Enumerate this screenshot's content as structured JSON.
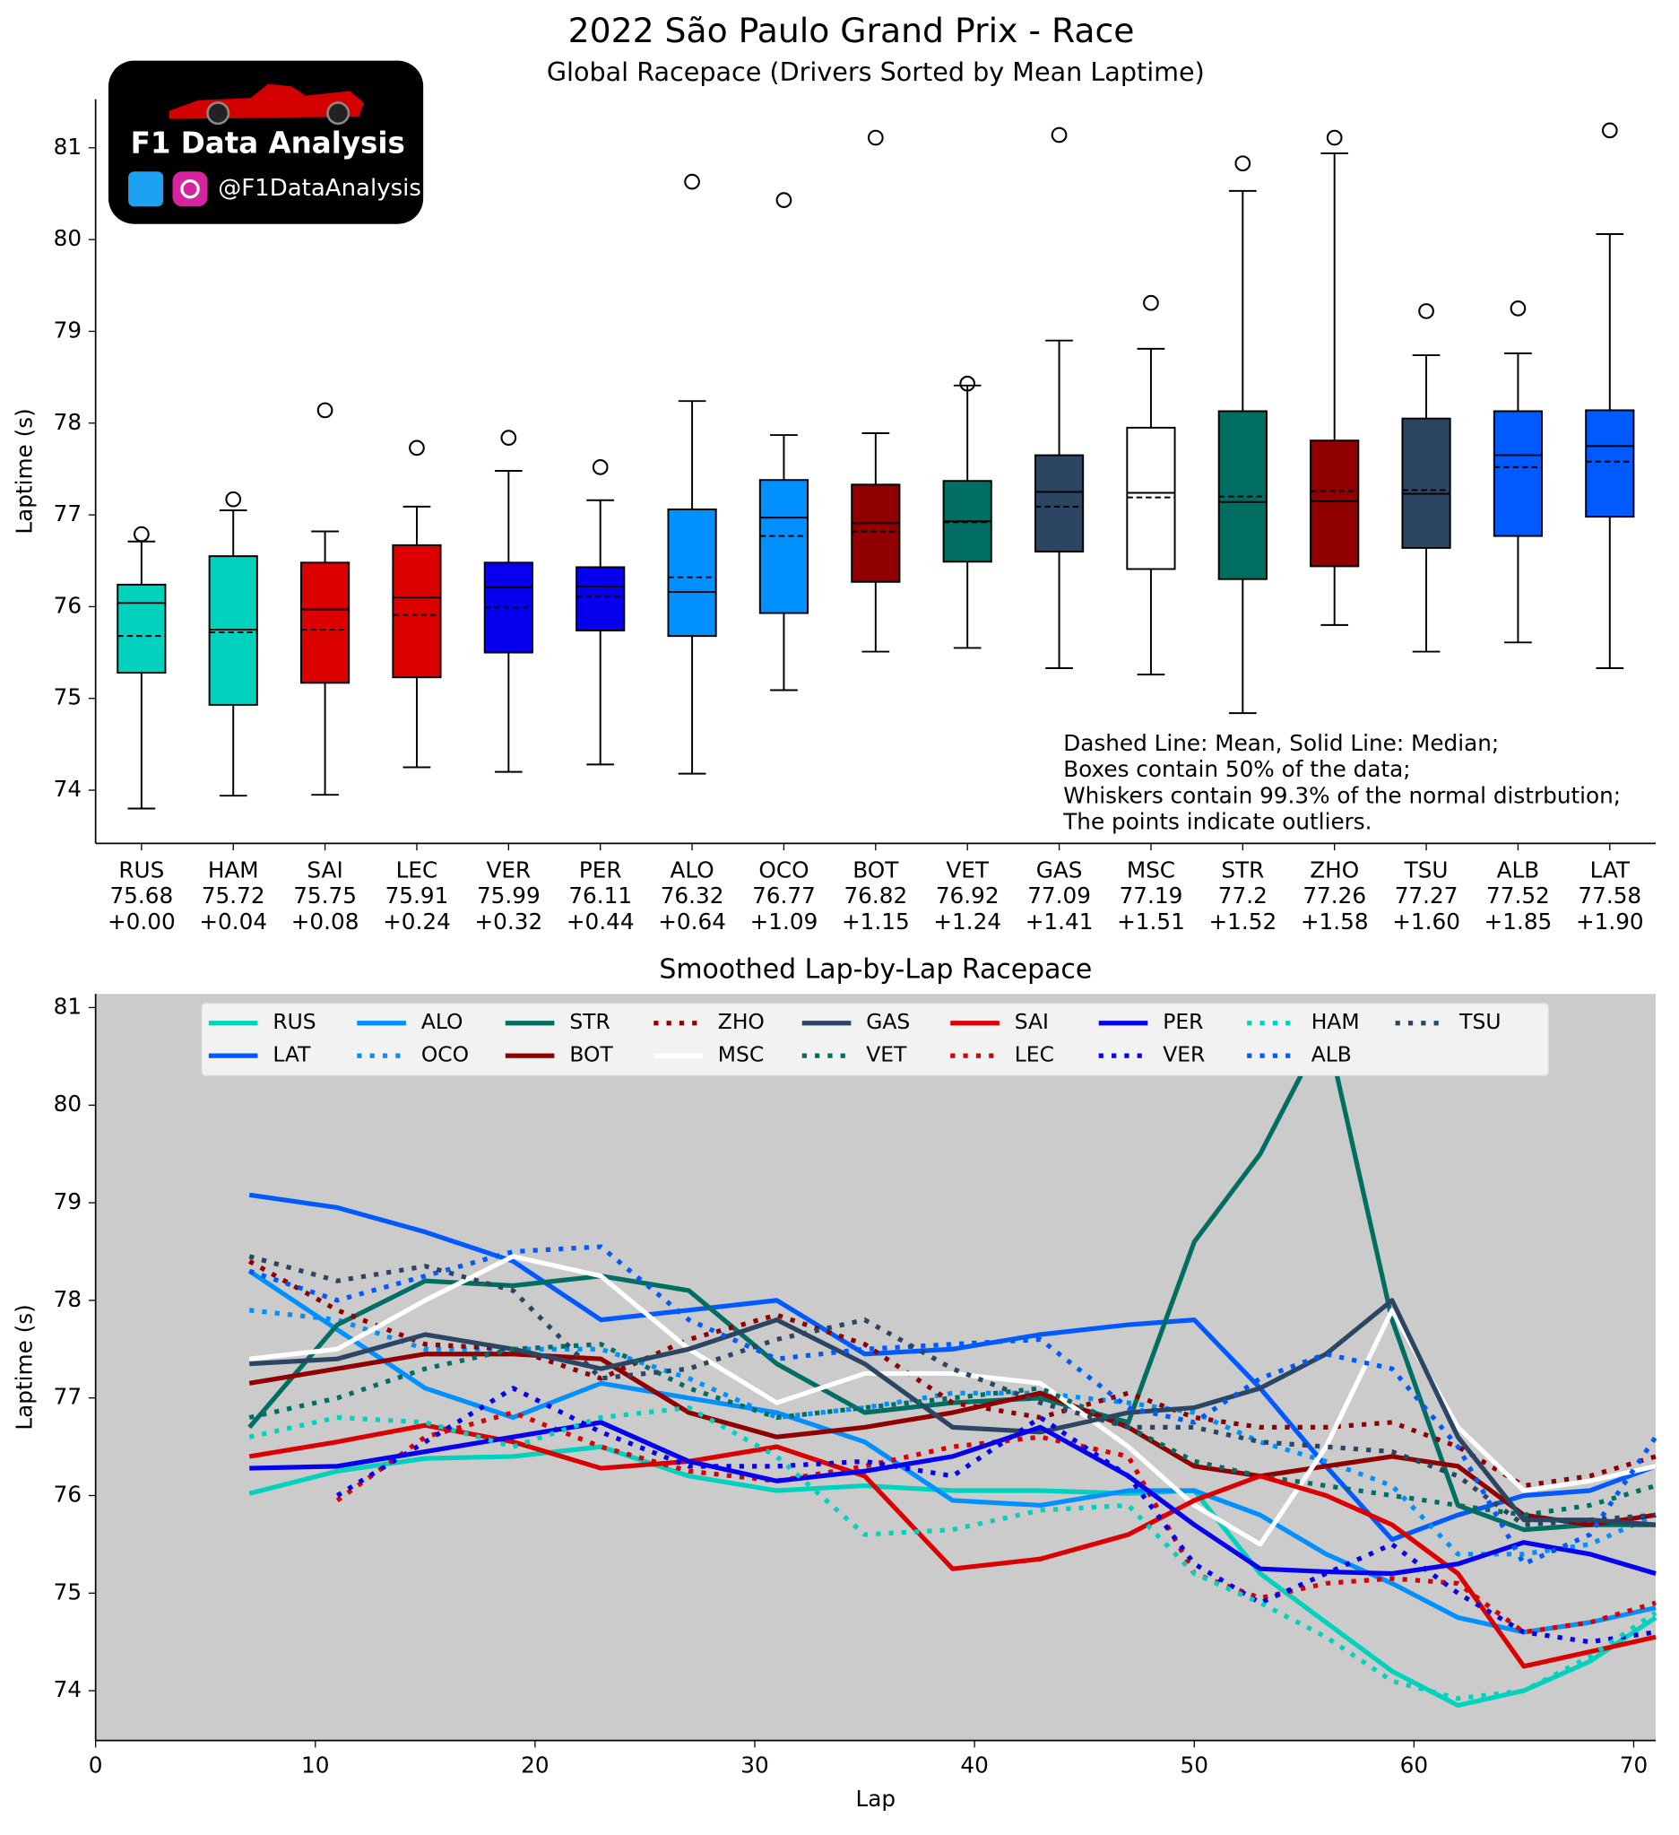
{
  "logo": {
    "title": "F1 Data Analysis",
    "handle": "@F1DataAnalysis"
  },
  "chart_data": [
    {
      "type": "box",
      "title": "2022 São Paulo Grand Prix - Race",
      "subtitle": "Global Racepace (Drivers Sorted by Mean Laptime)",
      "ylabel": "Laptime (s)",
      "categories": [
        "RUS",
        "HAM",
        "SAI",
        "LEC",
        "VER",
        "PER",
        "ALO",
        "OCO",
        "BOT",
        "VET",
        "GAS",
        "MSC",
        "STR",
        "ZHO",
        "TSU",
        "ALB",
        "LAT"
      ],
      "means": [
        75.68,
        75.72,
        75.75,
        75.91,
        75.99,
        76.11,
        76.32,
        76.77,
        76.82,
        76.92,
        77.09,
        77.19,
        77.2,
        77.26,
        77.27,
        77.52,
        77.58
      ],
      "deltas": [
        "+0.00",
        "+0.04",
        "+0.08",
        "+0.24",
        "+0.32",
        "+0.44",
        "+0.64",
        "+1.09",
        "+1.15",
        "+1.24",
        "+1.41",
        "+1.51",
        "+1.52",
        "+1.58",
        "+1.60",
        "+1.85",
        "+1.90"
      ],
      "colors": [
        "#00d2be",
        "#00d2be",
        "#dc0000",
        "#dc0000",
        "#0600ef",
        "#0600ef",
        "#0090ff",
        "#0090ff",
        "#900000",
        "#006f62",
        "#2b4562",
        "#ffffff",
        "#006f62",
        "#900000",
        "#2b4562",
        "#005aff",
        "#005aff"
      ],
      "whisker_low": [
        73.8,
        73.94,
        73.95,
        74.25,
        74.2,
        74.28,
        74.18,
        75.09,
        75.51,
        75.55,
        75.33,
        75.26,
        74.84,
        75.8,
        75.51,
        75.61,
        75.33
      ],
      "q1": [
        75.28,
        74.93,
        75.17,
        75.23,
        75.5,
        75.74,
        75.68,
        75.93,
        76.27,
        76.49,
        76.6,
        76.41,
        76.3,
        76.44,
        76.64,
        76.77,
        76.98
      ],
      "median": [
        76.04,
        75.75,
        75.97,
        76.1,
        76.21,
        76.22,
        76.16,
        76.97,
        76.91,
        76.93,
        77.25,
        77.24,
        77.14,
        77.15,
        77.23,
        77.65,
        77.75
      ],
      "q3": [
        76.24,
        76.55,
        76.48,
        76.67,
        76.48,
        76.43,
        77.06,
        77.38,
        77.33,
        77.37,
        77.65,
        77.95,
        78.13,
        77.81,
        78.05,
        78.13,
        78.14
      ],
      "whisker_high": [
        76.71,
        77.05,
        76.82,
        77.09,
        77.48,
        77.16,
        78.24,
        77.87,
        77.89,
        78.41,
        78.9,
        78.81,
        80.53,
        80.94,
        78.74,
        78.76,
        80.06
      ],
      "outliers": [
        [
          76.79
        ],
        [
          77.17
        ],
        [
          78.14
        ],
        [
          77.73
        ],
        [
          77.84
        ],
        [
          77.52
        ],
        [
          80.63
        ],
        [
          80.43
        ],
        [
          81.11
        ],
        [
          78.43
        ],
        [
          81.14
        ],
        [
          79.31
        ],
        [
          80.83
        ],
        [
          81.11
        ],
        [
          79.22
        ],
        [
          79.25
        ],
        [
          81.19
        ]
      ],
      "ylim": [
        73.42,
        81.53
      ],
      "yticks": [
        74,
        75,
        76,
        77,
        78,
        79,
        80,
        81
      ],
      "annotation": [
        "Dashed Line: Mean, Solid Line: Median;",
        "Boxes contain 50% of the data;",
        "Whiskers contain 99.3% of the normal distrbution;",
        "The points indicate outliers."
      ]
    },
    {
      "type": "line",
      "title": "Smoothed Lap-by-Lap Racepace",
      "xlabel": "Lap",
      "ylabel": "Laptime (s)",
      "x": [
        7,
        11,
        15,
        19,
        23,
        27,
        31,
        35,
        39,
        43,
        47,
        50,
        53,
        56,
        59,
        62,
        65,
        68,
        71
      ],
      "series": [
        {
          "name": "RUS",
          "color": "#00d2be",
          "style": "solid",
          "values": [
            76.02,
            76.25,
            76.38,
            76.4,
            76.5,
            76.2,
            76.05,
            76.1,
            76.05,
            76.05,
            76.02,
            76.05,
            75.2,
            74.7,
            74.2,
            73.85,
            74.0,
            74.3,
            74.75
          ]
        },
        {
          "name": "LAT",
          "color": "#005aff",
          "style": "solid",
          "values": [
            79.08,
            78.95,
            78.7,
            78.4,
            77.8,
            77.9,
            78.0,
            77.45,
            77.5,
            77.65,
            77.75,
            77.8,
            77.1,
            76.3,
            75.55,
            75.8,
            76.0,
            76.05,
            76.3
          ]
        },
        {
          "name": "ALO",
          "color": "#0090ff",
          "style": "solid",
          "values": [
            78.3,
            77.7,
            77.1,
            76.8,
            77.15,
            77.0,
            76.85,
            76.55,
            75.95,
            75.9,
            76.05,
            76.05,
            75.8,
            75.4,
            75.1,
            74.75,
            74.6,
            74.7,
            74.85
          ]
        },
        {
          "name": "OCO",
          "color": "#0090ff",
          "style": "dotted",
          "values": [
            77.9,
            77.8,
            77.5,
            77.5,
            77.5,
            77.2,
            76.8,
            76.9,
            77.05,
            77.05,
            76.95,
            76.85,
            76.55,
            76.35,
            76.1,
            75.4,
            75.4,
            75.5,
            75.8
          ]
        },
        {
          "name": "STR",
          "color": "#006f62",
          "style": "solid",
          "values": [
            76.7,
            77.75,
            78.2,
            78.15,
            78.25,
            78.1,
            77.35,
            76.85,
            76.95,
            77.0,
            76.75,
            78.6,
            79.5,
            80.8,
            77.8,
            75.9,
            75.65,
            75.7,
            75.7
          ]
        },
        {
          "name": "BOT",
          "color": "#900000",
          "style": "solid",
          "values": [
            77.15,
            77.3,
            77.45,
            77.45,
            77.4,
            76.85,
            76.6,
            76.7,
            76.85,
            77.05,
            76.7,
            76.3,
            76.2,
            76.3,
            76.4,
            76.3,
            75.8,
            75.7,
            75.8
          ]
        },
        {
          "name": "ZHO",
          "color": "#900000",
          "style": "dotted",
          "values": [
            78.4,
            77.9,
            77.55,
            77.5,
            77.2,
            77.6,
            77.85,
            77.55,
            76.95,
            76.8,
            77.05,
            76.8,
            76.7,
            76.7,
            76.75,
            76.5,
            76.1,
            76.2,
            76.4
          ]
        },
        {
          "name": "MSC",
          "color": "#ffffff",
          "style": "solid",
          "values": [
            77.4,
            77.5,
            78.0,
            78.45,
            78.25,
            77.5,
            76.95,
            77.25,
            77.25,
            77.15,
            76.5,
            75.9,
            75.5,
            76.5,
            77.9,
            76.7,
            76.05,
            76.15,
            76.3
          ]
        },
        {
          "name": "GAS",
          "color": "#2b4562",
          "style": "solid",
          "values": [
            77.35,
            77.4,
            77.65,
            77.5,
            77.3,
            77.5,
            77.8,
            77.35,
            76.7,
            76.65,
            76.85,
            76.9,
            77.1,
            77.45,
            78.0,
            76.6,
            75.75,
            75.75,
            75.7
          ]
        },
        {
          "name": "VET",
          "color": "#006f62",
          "style": "dotted",
          "values": [
            76.8,
            77.0,
            77.3,
            77.5,
            77.55,
            77.1,
            76.8,
            76.9,
            77.0,
            77.1,
            76.7,
            76.35,
            76.2,
            76.1,
            76.0,
            75.9,
            75.8,
            75.9,
            76.1
          ]
        },
        {
          "name": "SAI",
          "color": "#dc0000",
          "style": "solid",
          "values": [
            76.4,
            76.55,
            76.72,
            76.55,
            76.28,
            76.35,
            76.5,
            76.2,
            75.25,
            75.35,
            75.6,
            75.95,
            76.2,
            76.0,
            75.7,
            75.2,
            74.25,
            74.4,
            74.55
          ]
        },
        {
          "name": "LEC",
          "color": "#dc0000",
          "style": "dotted",
          "values": [
            null,
            75.95,
            76.6,
            76.85,
            76.5,
            76.25,
            76.15,
            76.3,
            76.5,
            76.6,
            76.4,
            75.2,
            74.95,
            75.1,
            75.15,
            75.1,
            74.6,
            74.7,
            74.9
          ]
        },
        {
          "name": "PER",
          "color": "#0600ef",
          "style": "solid",
          "values": [
            76.28,
            76.3,
            76.45,
            76.6,
            76.75,
            76.35,
            76.15,
            76.25,
            76.4,
            76.7,
            76.2,
            75.7,
            75.25,
            75.22,
            75.2,
            75.3,
            75.52,
            75.4,
            75.2
          ]
        },
        {
          "name": "VER",
          "color": "#0600ef",
          "style": "dotted",
          "values": [
            null,
            76.0,
            76.55,
            77.1,
            76.65,
            76.3,
            76.3,
            76.35,
            76.2,
            76.8,
            76.2,
            75.3,
            74.9,
            75.2,
            75.5,
            75.0,
            74.6,
            74.5,
            74.6
          ]
        },
        {
          "name": "HAM",
          "color": "#00d2be",
          "style": "dotted",
          "values": [
            76.6,
            76.8,
            76.75,
            76.5,
            76.8,
            76.9,
            76.4,
            75.6,
            75.65,
            75.85,
            75.9,
            75.2,
            74.9,
            74.55,
            74.1,
            73.92,
            74.0,
            74.35,
            74.8
          ]
        },
        {
          "name": "ALB",
          "color": "#005aff",
          "style": "dotted",
          "values": [
            78.3,
            78.0,
            78.25,
            78.5,
            78.55,
            77.8,
            77.4,
            77.5,
            77.55,
            77.6,
            76.9,
            76.75,
            77.2,
            77.45,
            77.3,
            76.5,
            75.3,
            75.6,
            76.6
          ]
        },
        {
          "name": "TSU",
          "color": "#2b4562",
          "style": "dotted",
          "values": [
            78.45,
            78.2,
            78.35,
            78.1,
            77.2,
            77.3,
            77.6,
            77.8,
            77.3,
            76.95,
            76.7,
            76.7,
            76.55,
            76.5,
            76.45,
            76.2,
            75.7,
            75.75,
            75.8
          ]
        }
      ],
      "xlim": [
        0,
        71
      ],
      "ylim": [
        73.49,
        81.14
      ],
      "xticks": [
        0,
        10,
        20,
        30,
        40,
        50,
        60,
        70
      ],
      "yticks": [
        74,
        75,
        76,
        77,
        78,
        79,
        80,
        81
      ],
      "background": "#cbcbcb",
      "legend": "top"
    }
  ]
}
